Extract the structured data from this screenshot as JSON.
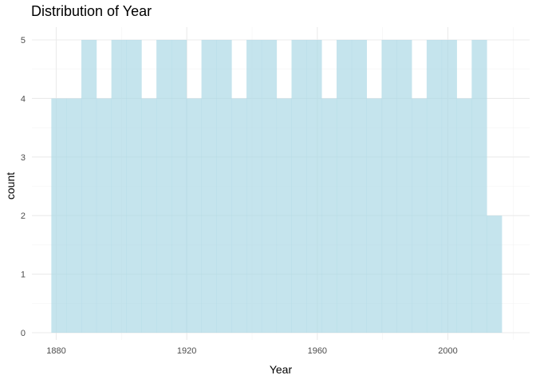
{
  "chart_data": {
    "type": "bar",
    "subtype": "histogram",
    "title": "Distribution of Year",
    "xlabel": "Year",
    "ylabel": "count",
    "bin_width": 4.6,
    "bins": [
      {
        "x0": 1878.5,
        "x1": 1883.1,
        "count": 4
      },
      {
        "x0": 1883.1,
        "x1": 1887.7,
        "count": 4
      },
      {
        "x0": 1887.7,
        "x1": 1892.3,
        "count": 5
      },
      {
        "x0": 1892.3,
        "x1": 1896.9,
        "count": 4
      },
      {
        "x0": 1896.9,
        "x1": 1901.5,
        "count": 5
      },
      {
        "x0": 1901.5,
        "x1": 1906.1,
        "count": 5
      },
      {
        "x0": 1906.1,
        "x1": 1910.7,
        "count": 4
      },
      {
        "x0": 1910.7,
        "x1": 1915.3,
        "count": 5
      },
      {
        "x0": 1915.3,
        "x1": 1919.9,
        "count": 5
      },
      {
        "x0": 1919.9,
        "x1": 1924.5,
        "count": 4
      },
      {
        "x0": 1924.5,
        "x1": 1929.1,
        "count": 5
      },
      {
        "x0": 1929.1,
        "x1": 1933.7,
        "count": 5
      },
      {
        "x0": 1933.7,
        "x1": 1938.3,
        "count": 4
      },
      {
        "x0": 1938.3,
        "x1": 1942.9,
        "count": 5
      },
      {
        "x0": 1942.9,
        "x1": 1947.5,
        "count": 5
      },
      {
        "x0": 1947.5,
        "x1": 1952.1,
        "count": 4
      },
      {
        "x0": 1952.1,
        "x1": 1956.7,
        "count": 5
      },
      {
        "x0": 1956.7,
        "x1": 1961.3,
        "count": 5
      },
      {
        "x0": 1961.3,
        "x1": 1965.9,
        "count": 4
      },
      {
        "x0": 1965.9,
        "x1": 1970.5,
        "count": 5
      },
      {
        "x0": 1970.5,
        "x1": 1975.1,
        "count": 5
      },
      {
        "x0": 1975.1,
        "x1": 1979.7,
        "count": 4
      },
      {
        "x0": 1979.7,
        "x1": 1984.3,
        "count": 5
      },
      {
        "x0": 1984.3,
        "x1": 1988.9,
        "count": 5
      },
      {
        "x0": 1988.9,
        "x1": 1993.5,
        "count": 4
      },
      {
        "x0": 1993.5,
        "x1": 1998.1,
        "count": 5
      },
      {
        "x0": 1998.1,
        "x1": 2002.7,
        "count": 5
      },
      {
        "x0": 2002.7,
        "x1": 2007.3,
        "count": 4
      },
      {
        "x0": 2007.3,
        "x1": 2011.9,
        "count": 5
      },
      {
        "x0": 2011.9,
        "x1": 2016.5,
        "count": 2
      }
    ],
    "xlim": [
      1875.5,
      2019.5
    ],
    "ylim": [
      0,
      5
    ],
    "x_ticks": [
      1880,
      1920,
      1960,
      2000
    ],
    "x_minor_ticks": [
      1900,
      1940,
      1980,
      2020
    ],
    "y_ticks": [
      0,
      1,
      2,
      3,
      4,
      5
    ],
    "grid": true,
    "legend": "none",
    "bar_color": "#add8e6"
  }
}
